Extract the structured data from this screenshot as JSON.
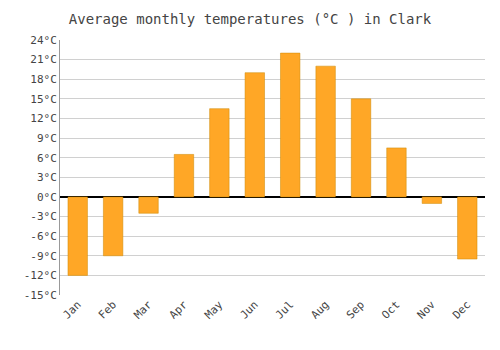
{
  "chart_data": {
    "type": "bar",
    "title": "Average monthly temperatures (°C ) in Clark",
    "categories": [
      "Jan",
      "Feb",
      "Mar",
      "Apr",
      "May",
      "Jun",
      "Jul",
      "Aug",
      "Sep",
      "Oct",
      "Nov",
      "Dec"
    ],
    "values": [
      -12,
      -9,
      -2.5,
      6.5,
      13.5,
      19,
      22,
      20,
      15,
      7.5,
      -1,
      -9.5
    ],
    "color": "#FFA726",
    "ylim": [
      -15,
      24
    ],
    "yticks": [
      {
        "value": -15,
        "label": "-15°C"
      },
      {
        "value": -12,
        "label": "-12°C"
      },
      {
        "value": -9,
        "label": "-9°C"
      },
      {
        "value": -6,
        "label": "-6°C"
      },
      {
        "value": -3,
        "label": "-3°C"
      },
      {
        "value": 0,
        "label": "0°C"
      },
      {
        "value": 3,
        "label": "3°C"
      },
      {
        "value": 6,
        "label": "6°C"
      },
      {
        "value": 9,
        "label": "9°C"
      },
      {
        "value": 12,
        "label": "12°C"
      },
      {
        "value": 15,
        "label": "15°C"
      },
      {
        "value": 18,
        "label": "18°C"
      },
      {
        "value": 21,
        "label": "21°C"
      },
      {
        "value": 24,
        "label": "24°C"
      }
    ],
    "grid": true
  }
}
